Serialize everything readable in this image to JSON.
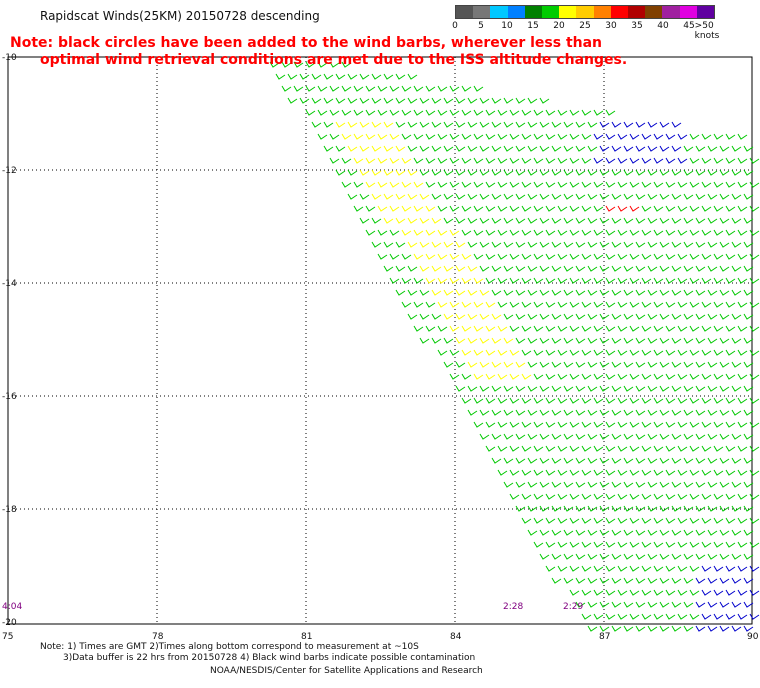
{
  "title": "Rapidscat Winds(25KM) 20150728 descending",
  "note": {
    "line1": "Note: black circles have been added to the wind barbs, wherever less than",
    "line2": "optimal wind retrieval conditions are met due to the ISS altitude changes."
  },
  "speed_scale": {
    "labels": [
      "0",
      "5",
      "10",
      "15",
      "20",
      "25",
      "30",
      "35",
      "40",
      "45",
      ">50 knots"
    ],
    "colors": [
      "#555555",
      "#777777",
      "#00c8ff",
      "#0080ff",
      "#008000",
      "#00cc00",
      "#ffff00",
      "#ffcc00",
      "#ff8000",
      "#ff0000",
      "#b00000",
      "#804000",
      "#a020a0",
      "#e000e0",
      "#6000a0"
    ]
  },
  "map": {
    "lat_labels": [
      "-10",
      "-12",
      "-14",
      "-16",
      "-18",
      "-20"
    ],
    "lon_labels": [
      "75",
      "78",
      "81",
      "84",
      "87",
      "90"
    ],
    "time_labels": [
      "4:04",
      "2:28",
      "2:29"
    ]
  },
  "footer": {
    "line1": "Note: 1) Times are GMT 2)Times along bottom correspond to measurement at ~10S",
    "line2": "3)Data buffer is 22 hrs from 20150728 4) Black wind barbs indicate possible contamination",
    "line3": "NOAA/NESDIS/Center for Satellite Applications and Research"
  },
  "colors": {
    "barb_green": "#00c800",
    "barb_yellow": "#ffff00",
    "barb_blue": "#0000cc",
    "barb_red": "#ff0000",
    "time_purple": "#800080",
    "note_red": "#ff0000"
  }
}
